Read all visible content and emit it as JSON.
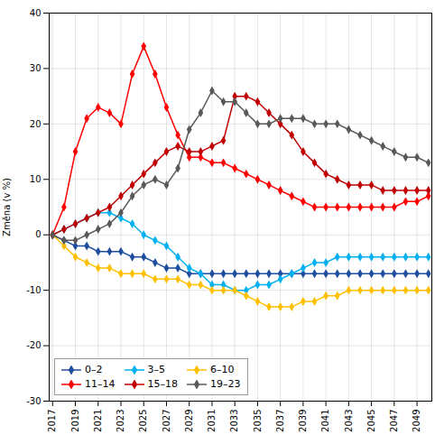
{
  "chart_data": {
    "type": "line",
    "x": [
      2017,
      2018,
      2019,
      2020,
      2021,
      2022,
      2023,
      2024,
      2025,
      2026,
      2027,
      2028,
      2029,
      2030,
      2031,
      2032,
      2033,
      2034,
      2035,
      2036,
      2037,
      2038,
      2039,
      2040,
      2041,
      2042,
      2043,
      2044,
      2045,
      2046,
      2047,
      2048,
      2049,
      2050
    ],
    "series": [
      {
        "name": "0–2",
        "color": "#1f4e9e",
        "values": [
          0,
          -1,
          -2,
          -2,
          -3,
          -3,
          -3,
          -4,
          -4,
          -5,
          -6,
          -6,
          -7,
          -7,
          -7,
          -7,
          -7,
          -7,
          -7,
          -7,
          -7,
          -7,
          -7,
          -7,
          -7,
          -7,
          -7,
          -7,
          -7,
          -7,
          -7,
          -7,
          -7,
          -7
        ]
      },
      {
        "name": "3–5",
        "color": "#00b0f0",
        "values": [
          0,
          1,
          2,
          3,
          4,
          4,
          3,
          2,
          0,
          -1,
          -2,
          -4,
          -6,
          -7,
          -9,
          -9,
          -10,
          -10,
          -9,
          -9,
          -8,
          -7,
          -6,
          -5,
          -5,
          -4,
          -4,
          -4,
          -4,
          -4,
          -4,
          -4,
          -4,
          -4
        ]
      },
      {
        "name": "6–10",
        "color": "#ffc000",
        "values": [
          0,
          -2,
          -4,
          -5,
          -6,
          -6,
          -7,
          -7,
          -7,
          -8,
          -8,
          -8,
          -9,
          -9,
          -10,
          -10,
          -10,
          -11,
          -12,
          -13,
          -13,
          -13,
          -12,
          -12,
          -11,
          -11,
          -10,
          -10,
          -10,
          -10,
          -10,
          -10,
          -10,
          -10
        ]
      },
      {
        "name": "11–14",
        "color": "#ff0000",
        "values": [
          0,
          5,
          15,
          21,
          23,
          22,
          20,
          29,
          34,
          29,
          23,
          18,
          14,
          14,
          13,
          13,
          12,
          11,
          10,
          9,
          8,
          7,
          6,
          5,
          5,
          5,
          5,
          5,
          5,
          5,
          5,
          6,
          6,
          7
        ]
      },
      {
        "name": "15–18",
        "color": "#c00000",
        "values": [
          0,
          1,
          2,
          3,
          4,
          5,
          7,
          9,
          11,
          13,
          15,
          16,
          15,
          15,
          16,
          17,
          25,
          25,
          24,
          22,
          20,
          18,
          15,
          13,
          11,
          10,
          9,
          9,
          9,
          8,
          8,
          8,
          8,
          8
        ]
      },
      {
        "name": "19–23",
        "color": "#595959",
        "values": [
          0,
          -1,
          -1,
          0,
          1,
          2,
          4,
          7,
          9,
          10,
          9,
          12,
          19,
          22,
          26,
          24,
          24,
          22,
          20,
          20,
          21,
          21,
          21,
          20,
          20,
          20,
          19,
          18,
          17,
          16,
          15,
          14,
          14,
          13
        ]
      }
    ],
    "ylabel": "Změna (v %)",
    "xlim": [
      2016.7,
      2050.3
    ],
    "xticks": [
      2017,
      2019,
      2021,
      2023,
      2025,
      2027,
      2029,
      2031,
      2033,
      2035,
      2037,
      2039,
      2041,
      2043,
      2045,
      2047,
      2049
    ],
    "ylim": [
      -30,
      40
    ],
    "yticks": [
      -30,
      -20,
      -10,
      0,
      10,
      20,
      30,
      40
    ],
    "grid": true,
    "legend": "lower left",
    "marker": "diamond"
  }
}
